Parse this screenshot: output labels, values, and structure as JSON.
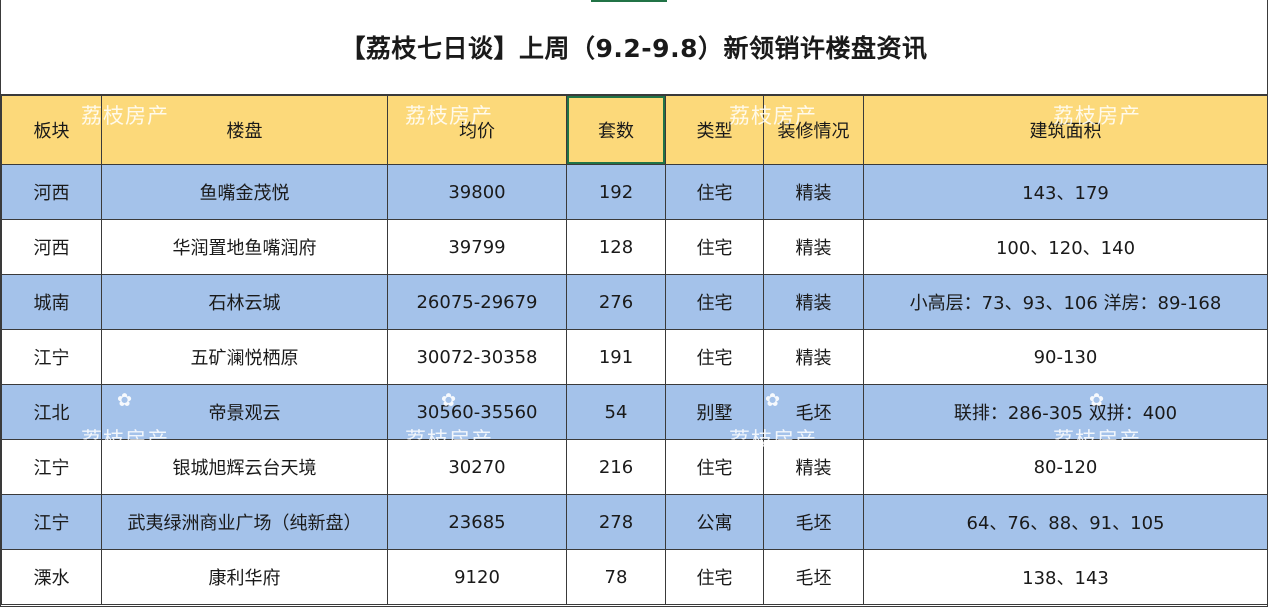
{
  "title": "【荔枝七日谈】上周（9.2-9.8）新领销许楼盘资讯",
  "watermark": "荔枝房产",
  "watermark_icon": "flower-icon",
  "colors": {
    "header_bg": "#fcd97a",
    "row_blue": "#a4c2ea",
    "row_white": "#ffffff",
    "selection": "#217346"
  },
  "headers": {
    "district": "板块",
    "project": "楼盘",
    "avg_price": "均价",
    "units": "套数",
    "type": "类型",
    "decoration": "装修情况",
    "area": "建筑面积"
  },
  "rows": [
    {
      "district": "河西",
      "project": "鱼嘴金茂悦",
      "avg_price": "39800",
      "units": "192",
      "type": "住宅",
      "decoration": "精装",
      "area": "143、179"
    },
    {
      "district": "河西",
      "project": "华润置地鱼嘴润府",
      "avg_price": "39799",
      "units": "128",
      "type": "住宅",
      "decoration": "精装",
      "area": "100、120、140"
    },
    {
      "district": "城南",
      "project": "石林云城",
      "avg_price": "26075-29679",
      "units": "276",
      "type": "住宅",
      "decoration": "精装",
      "area": "小高层：73、93、106 洋房：89-168"
    },
    {
      "district": "江宁",
      "project": "五矿澜悦栖原",
      "avg_price": "30072-30358",
      "units": "191",
      "type": "住宅",
      "decoration": "精装",
      "area": "90-130"
    },
    {
      "district": "江北",
      "project": "帝景观云",
      "avg_price": "30560-35560",
      "units": "54",
      "type": "别墅",
      "decoration": "毛坯",
      "area": "联排：286-305 双拼：400"
    },
    {
      "district": "江宁",
      "project": "银城旭辉云台天境",
      "avg_price": "30270",
      "units": "216",
      "type": "住宅",
      "decoration": "精装",
      "area": "80-120"
    },
    {
      "district": "江宁",
      "project": "武夷绿洲商业广场（纯新盘）",
      "avg_price": "23685",
      "units": "278",
      "type": "公寓",
      "decoration": "毛坯",
      "area": "64、76、88、91、105"
    },
    {
      "district": "溧水",
      "project": "康利华府",
      "avg_price": "9120",
      "units": "78",
      "type": "住宅",
      "decoration": "毛坯",
      "area": "138、143"
    }
  ]
}
